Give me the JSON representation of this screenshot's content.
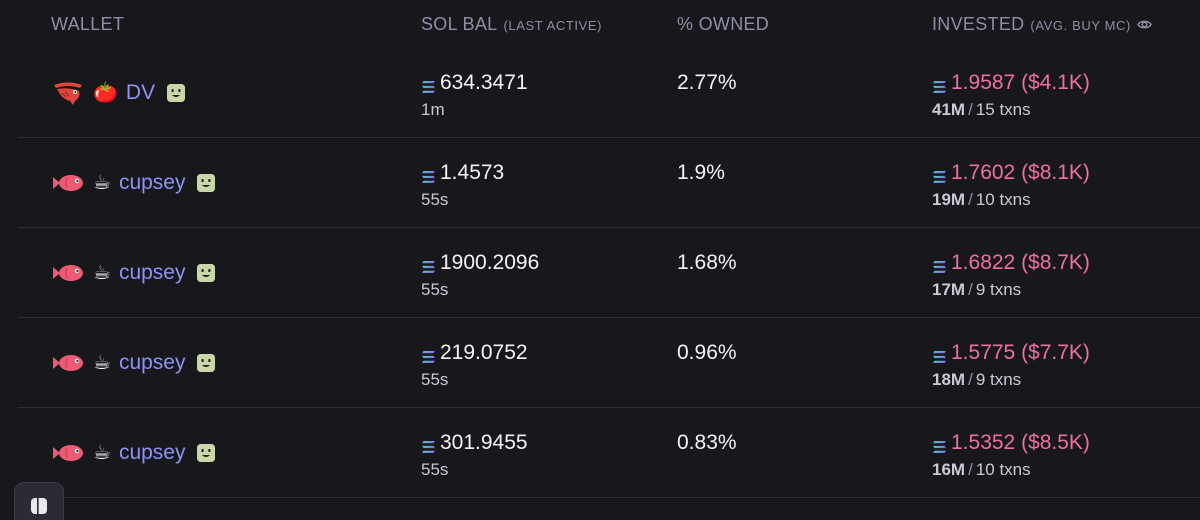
{
  "header": {
    "wallet": "WALLET",
    "sol_bal": "SOL BAL",
    "sol_bal_sub": "(LAST ACTIVE)",
    "owned": "% OWNED",
    "invested": "INVESTED",
    "invested_sub": "(AVG. BUY MC)"
  },
  "colors": {
    "background": "#17171c",
    "wallet_name": "#8f92f6",
    "invested_value": "#ef6fa5",
    "header_text": "#8d8fa6"
  },
  "rows": [
    {
      "avatar_icon": "shrimp-icon",
      "emoji": "🍅",
      "name": "DV",
      "badge_icon": "face-badge-icon",
      "sol": "634.3471",
      "last_active": "1m",
      "owned": "2.77%",
      "invested": "1.9587 ($4.1K)",
      "avg_mc": "41M",
      "txns": "15 txns"
    },
    {
      "avatar_icon": "fish-icon",
      "emoji": "☕",
      "name": "cupsey",
      "badge_icon": "face-badge-icon",
      "sol": "1.4573",
      "last_active": "55s",
      "owned": "1.9%",
      "invested": "1.7602 ($8.1K)",
      "avg_mc": "19M",
      "txns": "10 txns"
    },
    {
      "avatar_icon": "fish-icon",
      "emoji": "☕",
      "name": "cupsey",
      "badge_icon": "face-badge-icon",
      "sol": "1900.2096",
      "last_active": "55s",
      "owned": "1.68%",
      "invested": "1.6822 ($8.7K)",
      "avg_mc": "17M",
      "txns": "9 txns"
    },
    {
      "avatar_icon": "fish-icon",
      "emoji": "☕",
      "name": "cupsey",
      "badge_icon": "face-badge-icon",
      "sol": "219.0752",
      "last_active": "55s",
      "owned": "0.96%",
      "invested": "1.5775 ($7.7K)",
      "avg_mc": "18M",
      "txns": "9 txns"
    },
    {
      "avatar_icon": "fish-icon",
      "emoji": "☕",
      "name": "cupsey",
      "badge_icon": "face-badge-icon",
      "sol": "301.9455",
      "last_active": "55s",
      "owned": "0.83%",
      "invested": "1.5352 ($8.5K)",
      "avg_mc": "16M",
      "txns": "10 txns"
    }
  ]
}
